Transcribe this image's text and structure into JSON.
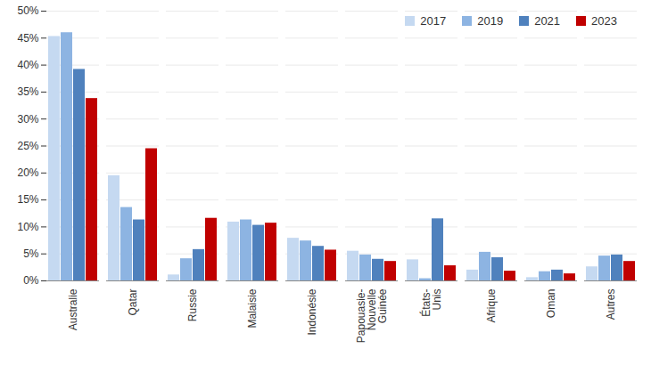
{
  "chart_data": {
    "type": "bar",
    "categories": [
      "Australie",
      "Qatar",
      "Russie",
      "Malaisie",
      "Indonésie",
      "Papouasie-Nouvelle Guinée",
      "États-Unis",
      "Afrique",
      "Oman",
      "Autres"
    ],
    "series": [
      {
        "name": "2017",
        "color": "#c5d9f1",
        "values": [
          45.3,
          19.5,
          1.1,
          10.9,
          7.9,
          5.5,
          3.9,
          2.0,
          0.6,
          2.6
        ]
      },
      {
        "name": "2019",
        "color": "#8db4e2",
        "values": [
          46.0,
          13.6,
          4.1,
          11.3,
          7.4,
          4.8,
          0.4,
          5.3,
          1.7,
          4.6
        ]
      },
      {
        "name": "2021",
        "color": "#4f81bd",
        "values": [
          39.2,
          11.3,
          5.8,
          10.3,
          6.4,
          4.0,
          11.5,
          4.3,
          2.0,
          4.8
        ]
      },
      {
        "name": "2023",
        "color": "#c00000",
        "values": [
          33.8,
          24.5,
          11.6,
          10.7,
          5.7,
          3.6,
          2.8,
          1.8,
          1.3,
          3.6
        ]
      }
    ],
    "ylim": [
      0,
      50
    ],
    "yticks": [
      {
        "value": 0,
        "label": "0%"
      },
      {
        "value": 5,
        "label": "5%"
      },
      {
        "value": 10,
        "label": "10%"
      },
      {
        "value": 15,
        "label": "15%"
      },
      {
        "value": 20,
        "label": "20%"
      },
      {
        "value": 25,
        "label": "25%"
      },
      {
        "value": 30,
        "label": "30%"
      },
      {
        "value": 35,
        "label": "35%"
      },
      {
        "value": 40,
        "label": "40%"
      },
      {
        "value": 45,
        "label": "45%"
      },
      {
        "value": 50,
        "label": "50%"
      }
    ],
    "grid": true,
    "legend": "top-right"
  }
}
